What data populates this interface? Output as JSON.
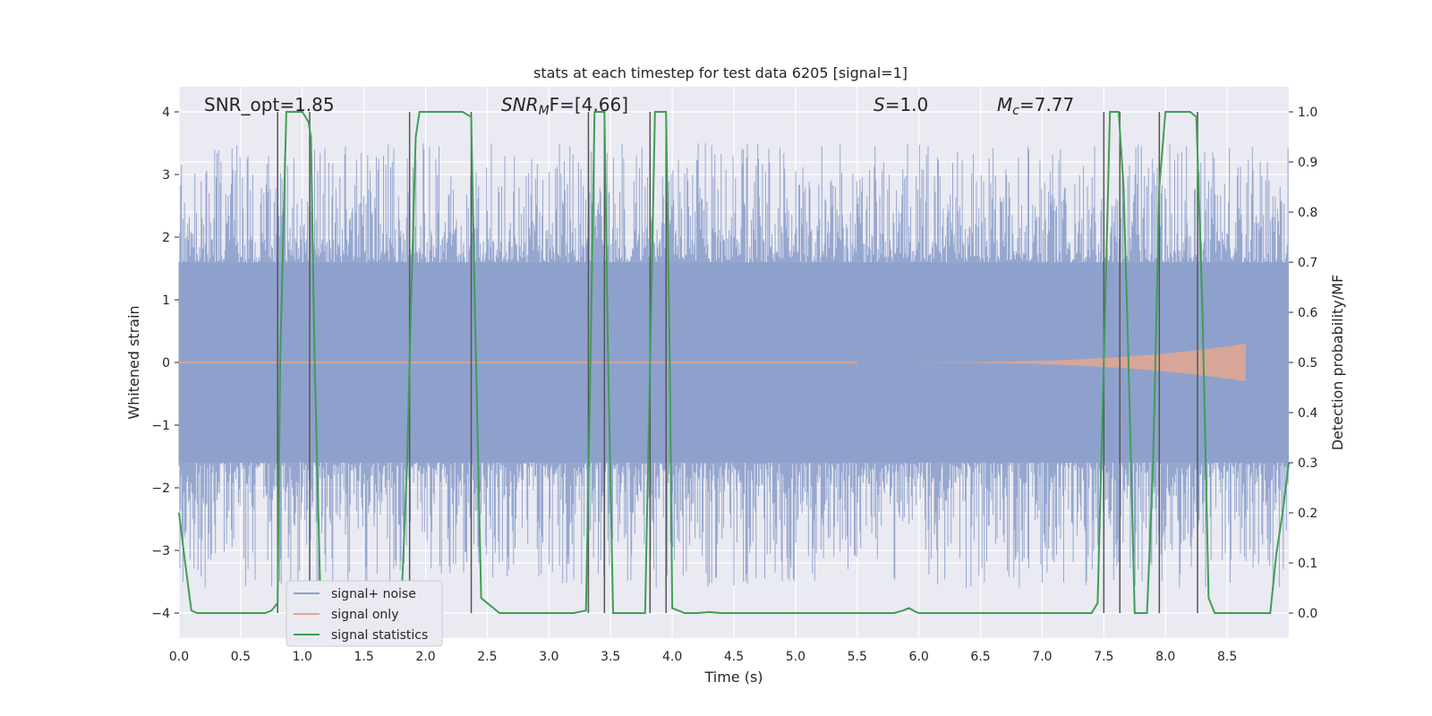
{
  "chart_data": {
    "type": "line",
    "title": "stats at each timestep for test data 6205 [signal=1]",
    "xlabel": "Time (s)",
    "ylabel_left": "Whitened strain",
    "ylabel_right": "Detection probability/MF",
    "xlim": [
      0.0,
      9.0
    ],
    "ylim_left": [
      -4.4,
      4.4
    ],
    "ylim_right": [
      -0.05,
      1.05
    ],
    "x_ticks": [
      "0.0",
      "0.5",
      "1.0",
      "1.5",
      "2.0",
      "2.5",
      "3.0",
      "3.5",
      "4.0",
      "4.5",
      "5.0",
      "5.5",
      "6.0",
      "6.5",
      "7.0",
      "7.5",
      "8.0",
      "8.5"
    ],
    "y_ticks_left": [
      "−4",
      "−3",
      "−2",
      "−1",
      "0",
      "1",
      "2",
      "3",
      "4"
    ],
    "y_ticks_right": [
      "0.0",
      "0.1",
      "0.2",
      "0.3",
      "0.4",
      "0.5",
      "0.6",
      "0.7",
      "0.8",
      "0.9",
      "1.0"
    ],
    "grid": true,
    "legend_location": "lower-left",
    "colors": {
      "signal_noise": "#8da0cb",
      "signal_only": "#e5a78f",
      "signal_statistics": "#3f9e55",
      "vlines": "#555555",
      "background": "#eaeaf2"
    },
    "annotations": {
      "snr_opt": "SNR_opt=1.85",
      "snr_mf_main": "SNR",
      "snr_mf_sub": "M",
      "snr_mf_rest": "F=[4.66]",
      "s_main": "S",
      "s_rest": "=1.0",
      "mc_main": "M",
      "mc_sub": "c",
      "mc_rest": "=7.77"
    },
    "series": [
      {
        "name": "signal+ noise",
        "description_amplitude_band": [
          -1.6,
          1.6
        ],
        "peak_range": [
          -3.6,
          3.5
        ]
      },
      {
        "name": "signal only",
        "chirp_start": 5.5,
        "chirp_end": 8.65,
        "chirp_peak_amplitude": 0.3
      },
      {
        "name": "signal statistics",
        "axis": "right",
        "x": [
          0.0,
          0.05,
          0.1,
          0.15,
          0.2,
          0.3,
          0.4,
          0.5,
          0.6,
          0.7,
          0.75,
          0.8,
          0.82,
          0.87,
          0.92,
          1.0,
          1.05,
          1.07,
          1.1,
          1.15,
          1.2,
          1.3,
          1.4,
          1.5,
          1.6,
          1.7,
          1.8,
          1.85,
          1.88,
          1.92,
          1.95,
          2.0,
          2.1,
          2.2,
          2.3,
          2.37,
          2.4,
          2.45,
          2.5,
          2.55,
          2.6,
          2.7,
          2.8,
          2.9,
          3.0,
          3.1,
          3.2,
          3.3,
          3.33,
          3.37,
          3.4,
          3.45,
          3.48,
          3.52,
          3.6,
          3.7,
          3.78,
          3.82,
          3.86,
          3.9,
          3.95,
          3.98,
          4.0,
          4.1,
          4.2,
          4.3,
          4.4,
          4.5,
          4.6,
          4.7,
          4.8,
          4.9,
          5.0,
          5.2,
          5.4,
          5.6,
          5.8,
          5.87,
          5.92,
          5.97,
          6.0,
          6.1,
          6.2,
          6.4,
          6.6,
          6.8,
          7.0,
          7.2,
          7.4,
          7.45,
          7.5,
          7.55,
          7.58,
          7.62,
          7.66,
          7.7,
          7.75,
          7.8,
          7.85,
          7.9,
          7.95,
          8.0,
          8.1,
          8.2,
          8.25,
          8.3,
          8.35,
          8.4,
          8.5,
          8.6,
          8.7,
          8.8,
          8.85,
          8.9,
          8.95,
          9.0
        ],
        "values": [
          0.2,
          0.1,
          0.005,
          0.0,
          0.0,
          0.0,
          0.0,
          0.0,
          0.0,
          0.0,
          0.005,
          0.02,
          0.5,
          1.0,
          1.0,
          1.0,
          0.98,
          0.95,
          0.5,
          0.0,
          0.0,
          0.0,
          0.0,
          0.0,
          0.0,
          0.0,
          0.0,
          0.3,
          0.6,
          0.95,
          1.0,
          1.0,
          1.0,
          1.0,
          1.0,
          0.99,
          0.6,
          0.03,
          0.02,
          0.01,
          0.0,
          0.0,
          0.0,
          0.0,
          0.0,
          0.0,
          0.0,
          0.005,
          0.4,
          1.0,
          1.0,
          1.0,
          0.5,
          0.0,
          0.0,
          0.0,
          0.0,
          0.5,
          1.0,
          1.0,
          1.0,
          0.5,
          0.01,
          0.0,
          0.0,
          0.002,
          0.0,
          0.0,
          0.0,
          0.0,
          0.0,
          0.0,
          0.0,
          0.0,
          0.0,
          0.0,
          0.0,
          0.005,
          0.01,
          0.003,
          0.0,
          0.0,
          0.0,
          0.0,
          0.0,
          0.0,
          0.0,
          0.0,
          0.0,
          0.02,
          0.5,
          1.0,
          1.0,
          1.0,
          0.85,
          0.5,
          0.0,
          0.0,
          0.0,
          0.3,
          0.85,
          1.0,
          1.0,
          1.0,
          0.99,
          0.6,
          0.03,
          0.0,
          0.0,
          0.0,
          0.0,
          0.0,
          0.0,
          0.12,
          0.2,
          0.3
        ]
      }
    ],
    "vertical_lines_x": [
      0.8,
      1.06,
      1.87,
      2.37,
      3.32,
      3.45,
      3.82,
      3.95,
      7.5,
      7.63,
      7.95,
      8.26
    ]
  }
}
